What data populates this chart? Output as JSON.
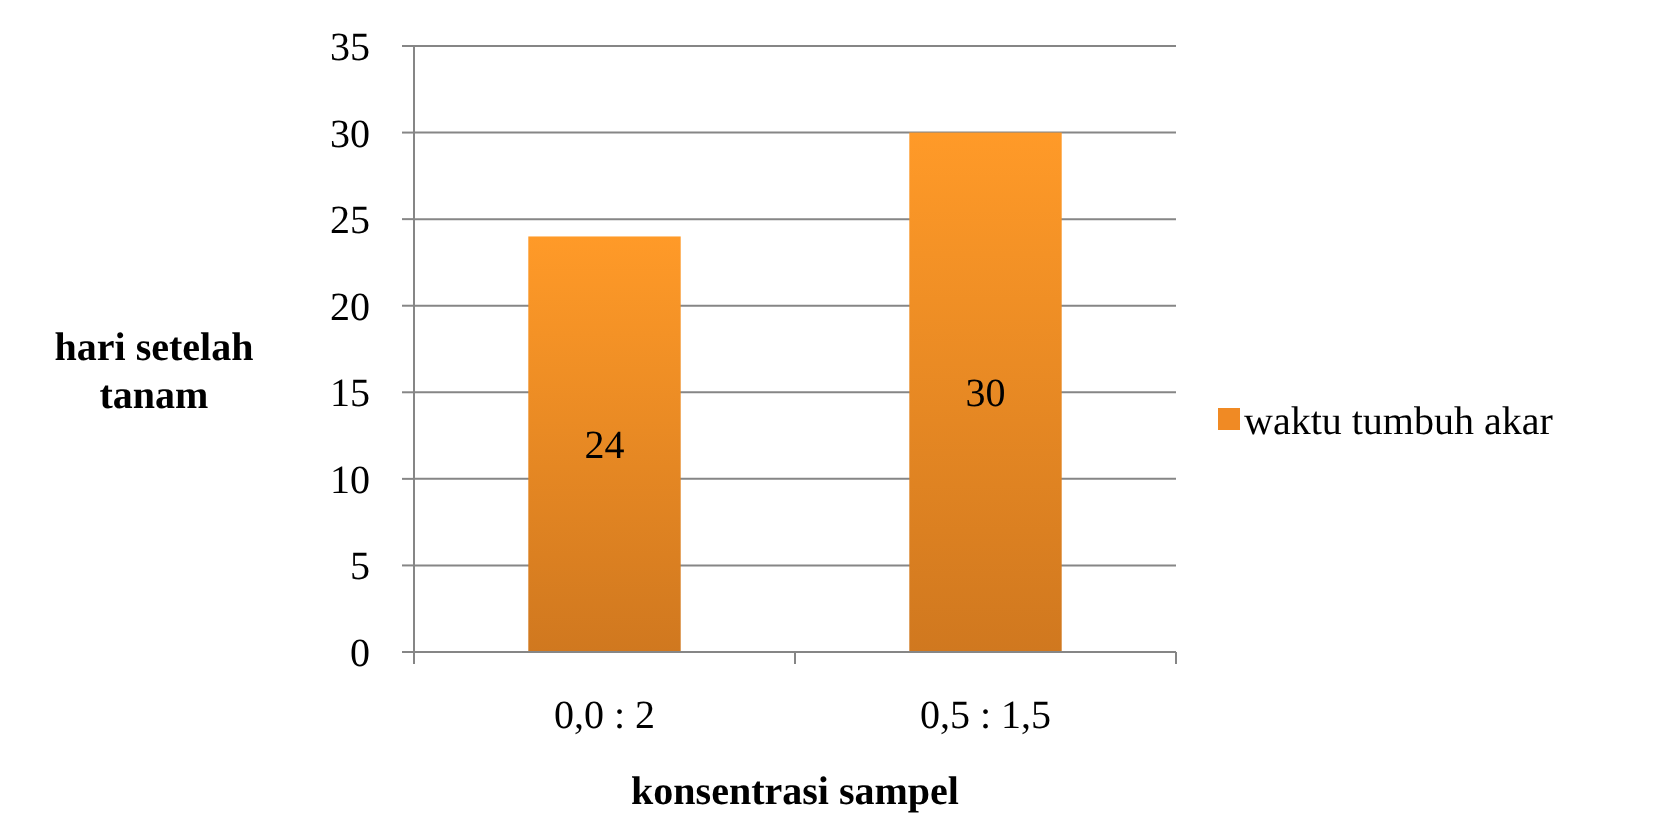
{
  "chart_data": {
    "type": "bar",
    "xlabel": "konsentrasi sampel",
    "ylabel": "hari setelah tanam",
    "categories": [
      "0,0 : 2",
      "0,5 : 1,5"
    ],
    "series": [
      {
        "name": "waktu tumbuh akar",
        "color": "#f08a24",
        "values": [
          24,
          30
        ]
      }
    ],
    "ylim": [
      0,
      35
    ],
    "yticks": [
      0,
      5,
      10,
      15,
      20,
      25,
      30,
      35
    ],
    "grid": "y",
    "legend": "right",
    "data_labels": true
  }
}
